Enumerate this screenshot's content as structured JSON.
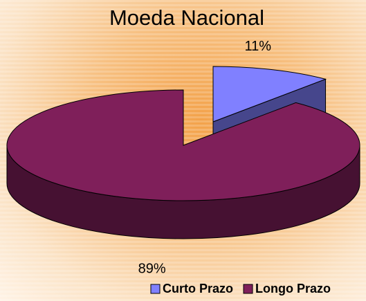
{
  "chart_data": {
    "type": "pie",
    "title": "Moeda Nacional",
    "categories": [
      "Curto Prazo",
      "Longo Prazo"
    ],
    "values": [
      11,
      89
    ],
    "value_labels": [
      "11%",
      "89%"
    ],
    "colors": [
      "#8080ff",
      "#7f1f5a"
    ]
  }
}
